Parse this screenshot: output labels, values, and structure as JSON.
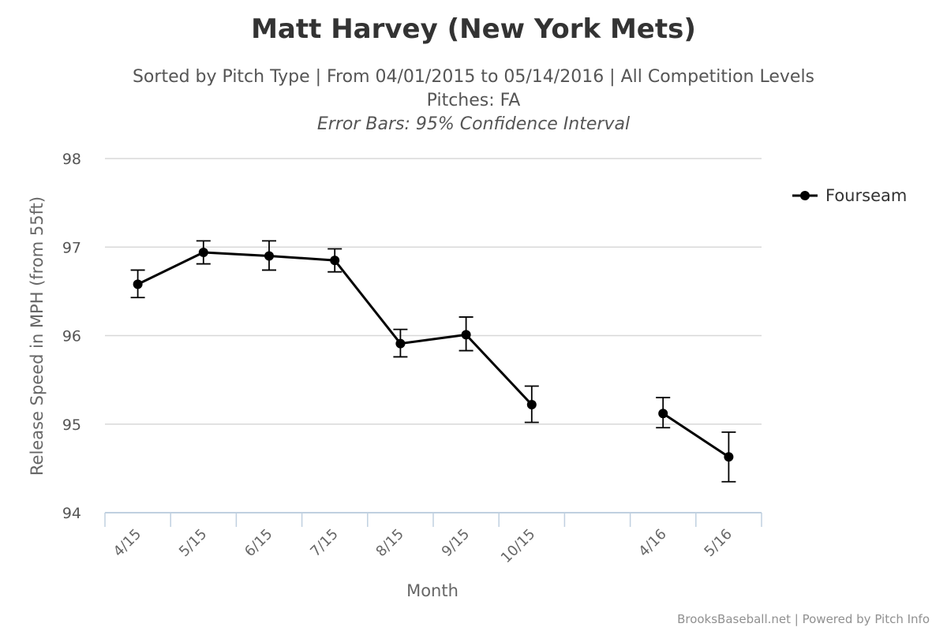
{
  "chart_data": {
    "type": "line",
    "title": "Matt Harvey (New York Mets)",
    "subtitle_lines": [
      "Sorted by Pitch Type | From 04/01/2015 to 05/14/2016 | All Competition Levels",
      "Pitches: FA"
    ],
    "error_bar_note": "Error Bars: 95% Confidence Interval",
    "xlabel": "Month",
    "ylabel": "Release Speed in MPH (from 55ft)",
    "ylim": [
      94,
      98
    ],
    "yticks": [
      "94",
      "95",
      "96",
      "97",
      "98"
    ],
    "categories": [
      "4/15",
      "5/15",
      "6/15",
      "7/15",
      "8/15",
      "9/15",
      "10/15",
      "",
      "4/16",
      "5/16"
    ],
    "grid": true,
    "legend_position": "top-right",
    "series": [
      {
        "name": "Fourseam",
        "color": "#000000",
        "values": [
          96.58,
          96.94,
          96.9,
          96.85,
          95.91,
          96.01,
          95.22,
          null,
          95.12,
          94.63
        ],
        "error_low": [
          96.43,
          96.81,
          96.74,
          96.72,
          95.76,
          95.83,
          95.02,
          null,
          94.96,
          94.35
        ],
        "error_high": [
          96.74,
          97.07,
          97.07,
          96.98,
          96.07,
          96.21,
          95.43,
          null,
          95.3,
          94.91
        ]
      }
    ]
  },
  "credits": "BrooksBaseball.net | Powered by Pitch Info",
  "colors": {
    "grid": "#d8d8d8",
    "axis": "#c0d0e0",
    "series": "#000000"
  }
}
